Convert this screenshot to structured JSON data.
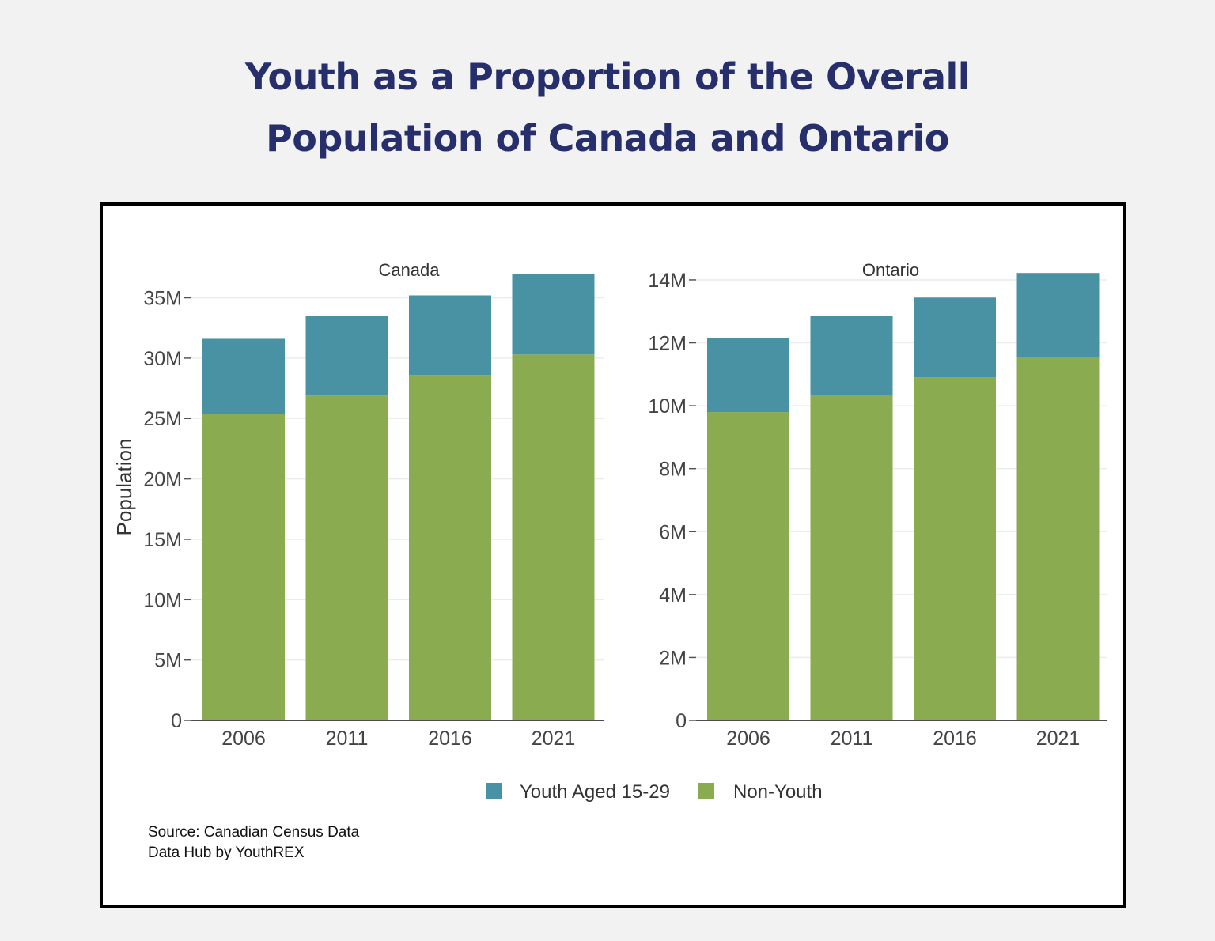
{
  "title": {
    "line1": "Youth as a Proportion of the Overall",
    "line2": "Population of Canada and Ontario"
  },
  "source": {
    "line1": "Source: Canadian Census Data",
    "line2": "Data Hub by YouthREX"
  },
  "colors": {
    "youth": "#4892a3",
    "non_youth": "#8aab4f",
    "title": "#262f6b"
  },
  "chart_data": [
    {
      "type": "bar",
      "stacked": true,
      "title": "Canada",
      "ylabel": "Population",
      "categories": [
        "2006",
        "2011",
        "2016",
        "2021"
      ],
      "ylim": [
        0,
        37000000
      ],
      "yticks": [
        0,
        5000000,
        10000000,
        15000000,
        20000000,
        25000000,
        30000000,
        35000000
      ],
      "ytick_labels": [
        "0",
        "5M",
        "10M",
        "15M",
        "20M",
        "25M",
        "30M",
        "35M"
      ],
      "series": [
        {
          "name": "Non-Youth",
          "values": [
            25400000,
            26900000,
            28600000,
            30300000
          ]
        },
        {
          "name": "Youth Aged 15-29",
          "values": [
            6200000,
            6600000,
            6600000,
            6700000
          ]
        }
      ]
    },
    {
      "type": "bar",
      "stacked": true,
      "title": "Ontario",
      "ylabel": "",
      "categories": [
        "2006",
        "2011",
        "2016",
        "2021"
      ],
      "ylim": [
        0,
        14200000
      ],
      "yticks": [
        0,
        2000000,
        4000000,
        6000000,
        8000000,
        10000000,
        12000000,
        14000000
      ],
      "ytick_labels": [
        "0",
        "2M",
        "4M",
        "6M",
        "8M",
        "10M",
        "12M",
        "14M"
      ],
      "series": [
        {
          "name": "Non-Youth",
          "values": [
            9800000,
            10350000,
            10900000,
            11550000
          ]
        },
        {
          "name": "Youth Aged 15-29",
          "values": [
            2360000,
            2500000,
            2540000,
            2670000
          ]
        }
      ]
    }
  ],
  "legend": {
    "position": "bottom-center",
    "items": [
      {
        "label": "Youth Aged 15-29",
        "color": "#4892a3"
      },
      {
        "label": "Non-Youth",
        "color": "#8aab4f"
      }
    ]
  }
}
